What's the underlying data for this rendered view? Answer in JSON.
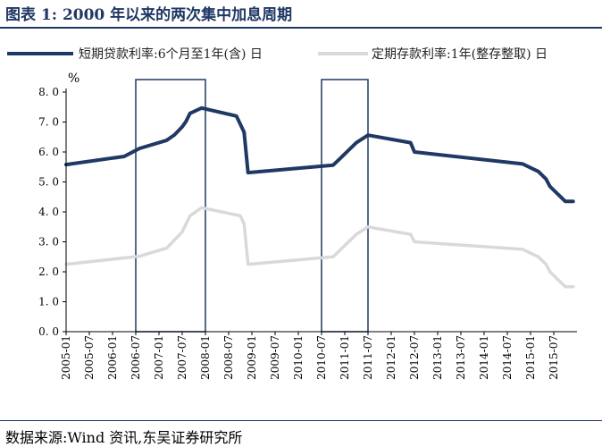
{
  "title": "图表 1:  2000 年以来的两次集中加息周期",
  "source": "数据来源:Wind 资讯,东吴证券研究所",
  "colors": {
    "series1": "#1f3864",
    "series2": "#d9d9d9",
    "highlight": "#1f3864",
    "title": "#1f3864"
  },
  "chart_data": {
    "type": "line",
    "ylabel": "%",
    "ylim": [
      0,
      8
    ],
    "yticks": [
      "0. 0",
      "1. 0",
      "2. 0",
      "3. 0",
      "4. 0",
      "5. 0",
      "6. 0",
      "7. 0",
      "8. 0"
    ],
    "xlim": [
      "2005-01",
      "2016-01"
    ],
    "xticks": [
      "2005-01",
      "2005-07",
      "2006-01",
      "2006-07",
      "2007-01",
      "2007-07",
      "2008-01",
      "2008-07",
      "2009-01",
      "2009-07",
      "2010-01",
      "2010-07",
      "2011-01",
      "2011-07",
      "2012-01",
      "2012-07",
      "2013-01",
      "2013-07",
      "2014-01",
      "2014-07",
      "2015-01",
      "2015-07"
    ],
    "grid": false,
    "legend": "top",
    "highlight_ranges": [
      [
        "2006-07",
        "2008-01"
      ],
      [
        "2010-07",
        "2011-07"
      ]
    ],
    "series": [
      {
        "name": "短期贷款利率:6个月至1年(含) 日",
        "points": [
          [
            "2005-01",
            5.58
          ],
          [
            "2006-04",
            5.85
          ],
          [
            "2006-08",
            6.12
          ],
          [
            "2007-03",
            6.39
          ],
          [
            "2007-05",
            6.57
          ],
          [
            "2007-07",
            6.84
          ],
          [
            "2007-08",
            7.02
          ],
          [
            "2007-09",
            7.29
          ],
          [
            "2007-12",
            7.47
          ],
          [
            "2008-09",
            7.2
          ],
          [
            "2008-10",
            6.93
          ],
          [
            "2008-11",
            6.66
          ],
          [
            "2008-12",
            5.31
          ],
          [
            "2010-10",
            5.56
          ],
          [
            "2010-12",
            5.81
          ],
          [
            "2011-02",
            6.06
          ],
          [
            "2011-04",
            6.31
          ],
          [
            "2011-07",
            6.56
          ],
          [
            "2012-06",
            6.31
          ],
          [
            "2012-07",
            6.0
          ],
          [
            "2014-11",
            5.6
          ],
          [
            "2015-03",
            5.35
          ],
          [
            "2015-05",
            5.1
          ],
          [
            "2015-06",
            4.85
          ],
          [
            "2015-08",
            4.6
          ],
          [
            "2015-10",
            4.35
          ],
          [
            "2015-12",
            4.35
          ]
        ]
      },
      {
        "name": "定期存款利率:1年(整存整取) 日",
        "points": [
          [
            "2005-01",
            2.25
          ],
          [
            "2006-08",
            2.52
          ],
          [
            "2007-03",
            2.79
          ],
          [
            "2007-05",
            3.06
          ],
          [
            "2007-07",
            3.33
          ],
          [
            "2007-08",
            3.6
          ],
          [
            "2007-09",
            3.87
          ],
          [
            "2007-12",
            4.14
          ],
          [
            "2008-10",
            3.87
          ],
          [
            "2008-11",
            3.6
          ],
          [
            "2008-12",
            2.25
          ],
          [
            "2010-10",
            2.5
          ],
          [
            "2010-12",
            2.75
          ],
          [
            "2011-02",
            3.0
          ],
          [
            "2011-04",
            3.25
          ],
          [
            "2011-07",
            3.5
          ],
          [
            "2012-06",
            3.25
          ],
          [
            "2012-07",
            3.0
          ],
          [
            "2014-11",
            2.75
          ],
          [
            "2015-03",
            2.5
          ],
          [
            "2015-05",
            2.25
          ],
          [
            "2015-06",
            2.0
          ],
          [
            "2015-08",
            1.75
          ],
          [
            "2015-10",
            1.5
          ],
          [
            "2015-12",
            1.5
          ]
        ]
      }
    ]
  }
}
